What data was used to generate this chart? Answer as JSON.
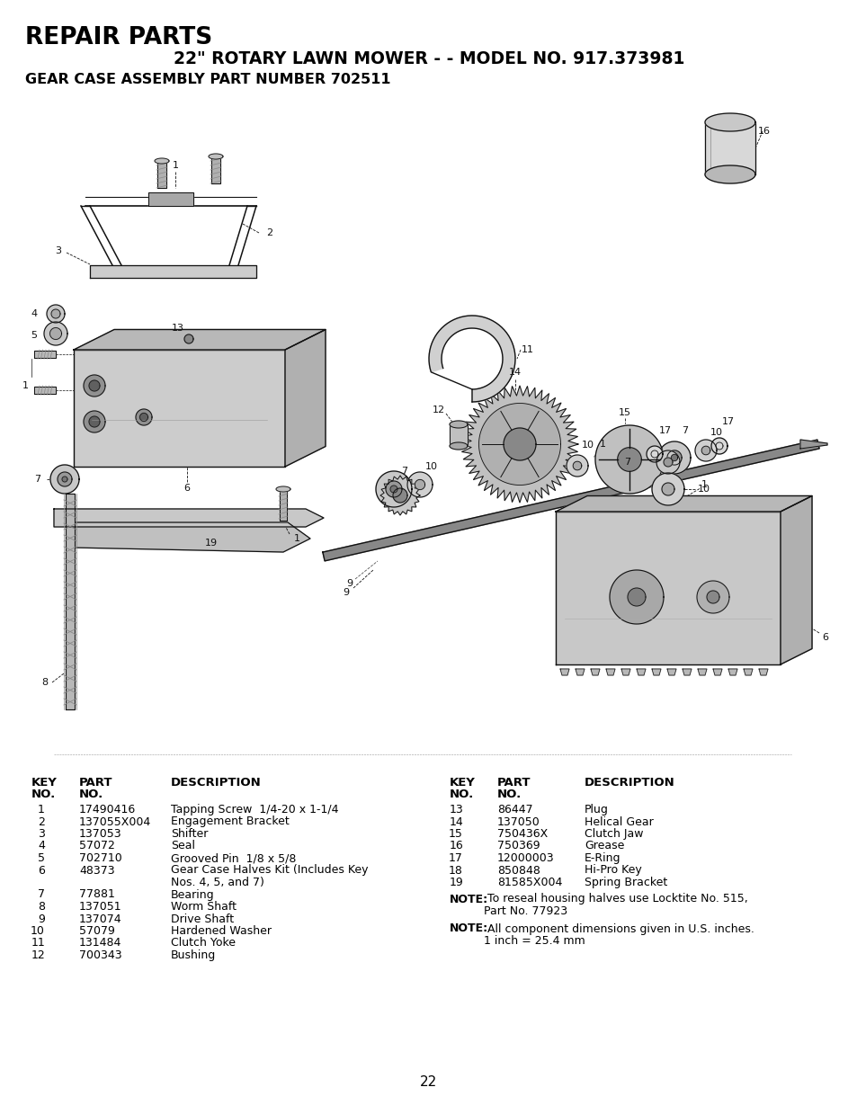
{
  "title_repair": "REPAIR PARTS",
  "title_model": "22\" ROTARY LAWN MOWER - - MODEL NO. 917.373981",
  "title_gear": "GEAR CASE ASSEMBLY PART NUMBER 702511",
  "page_number": "22",
  "left_table_rows": [
    [
      "1",
      "17490416",
      "Tapping Screw  1/4-20 x 1-1/4"
    ],
    [
      "2",
      "137055X004",
      "Engagement Bracket"
    ],
    [
      "3",
      "137053",
      "Shifter"
    ],
    [
      "4",
      "57072",
      "Seal"
    ],
    [
      "5",
      "702710",
      "Grooved Pin  1/8 x 5/8"
    ],
    [
      "6",
      "48373",
      "Gear Case Halves Kit (Includes Key"
    ],
    [
      "",
      "",
      "Nos. 4, 5, and 7)"
    ],
    [
      "7",
      "77881",
      "Bearing"
    ],
    [
      "8",
      "137051",
      "Worm Shaft"
    ],
    [
      "9",
      "137074",
      "Drive Shaft"
    ],
    [
      "10",
      "57079",
      "Hardened Washer"
    ],
    [
      "11",
      "131484",
      "Clutch Yoke"
    ],
    [
      "12",
      "700343",
      "Bushing"
    ]
  ],
  "right_table_rows": [
    [
      "13",
      "86447",
      "Plug"
    ],
    [
      "14",
      "137050",
      "Helical Gear"
    ],
    [
      "15",
      "750436X",
      "Clutch Jaw"
    ],
    [
      "16",
      "750369",
      "Grease"
    ],
    [
      "17",
      "12000003",
      "E-Ring"
    ],
    [
      "18",
      "850848",
      "Hi-Pro Key"
    ],
    [
      "19",
      "81585X004",
      "Spring Bracket"
    ]
  ],
  "note1_bold": "NOTE:",
  "note1_text": " To reseal housing halves use Locktite No. 515,",
  "note1_cont": "Part No. 77923",
  "note2_bold": "NOTE:",
  "note2_text": " All component dimensions given in U.S. inches.",
  "note2_cont": "1 inch = 25.4 mm",
  "bg_color": "#ffffff",
  "text_color": "#000000"
}
